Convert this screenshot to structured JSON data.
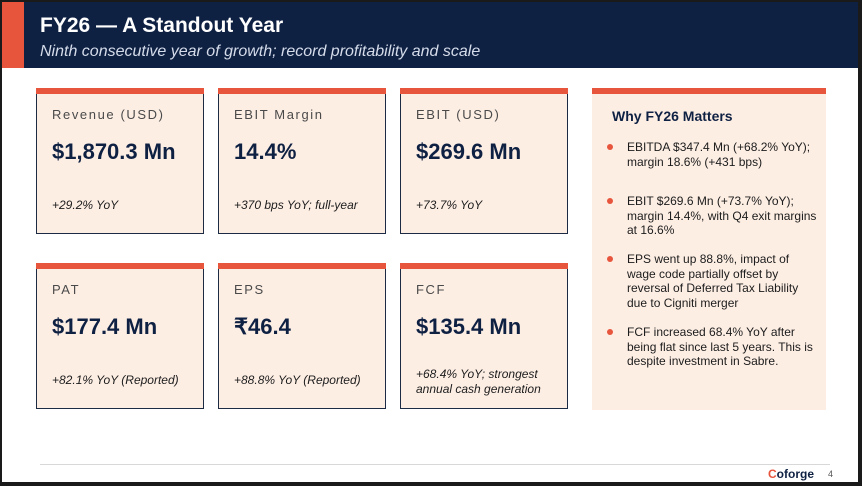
{
  "header": {
    "title": "FY26 — A Standout Year",
    "subtitle": "Ninth consecutive year of growth; record profitability and scale"
  },
  "cards": [
    {
      "label": "Revenue (USD)",
      "value": "$1,870.3 Mn",
      "note": "+29.2% YoY"
    },
    {
      "label": "EBIT Margin",
      "value": "14.4%",
      "note": "+370 bps YoY; full-year"
    },
    {
      "label": "EBIT (USD)",
      "value": "$269.6 Mn",
      "note": "+73.7% YoY"
    },
    {
      "label": "PAT",
      "value": "$177.4 Mn",
      "note": "+82.1% YoY (Reported)"
    },
    {
      "label": "EPS",
      "value": "₹46.4",
      "note": "+88.8% YoY (Reported)"
    },
    {
      "label": "FCF",
      "value": "$135.4 Mn",
      "note": "+68.4% YoY; strongest annual cash generation"
    }
  ],
  "side_panel": {
    "title": "Why FY26 Matters",
    "items": [
      "EBITDA $347.4 Mn (+68.2% YoY); margin 18.6% (+431 bps)",
      "EBIT $269.6 Mn (+73.7% YoY); margin 14.4%, with Q4 exit margins at 16.6%",
      "EPS went up 88.8%, impact of wage code partially offset by reversal of Deferred Tax Liability due to Cigniti merger",
      "FCF increased 68.4% YoY after being flat since last 5 years. This is despite investment in Sabre."
    ]
  },
  "footer": {
    "logo_first": "C",
    "logo_rest": "oforge",
    "page_number": "4"
  },
  "colors": {
    "navy": "#0f2143",
    "accent": "#e8553d",
    "card_bg": "#fdeee4"
  }
}
